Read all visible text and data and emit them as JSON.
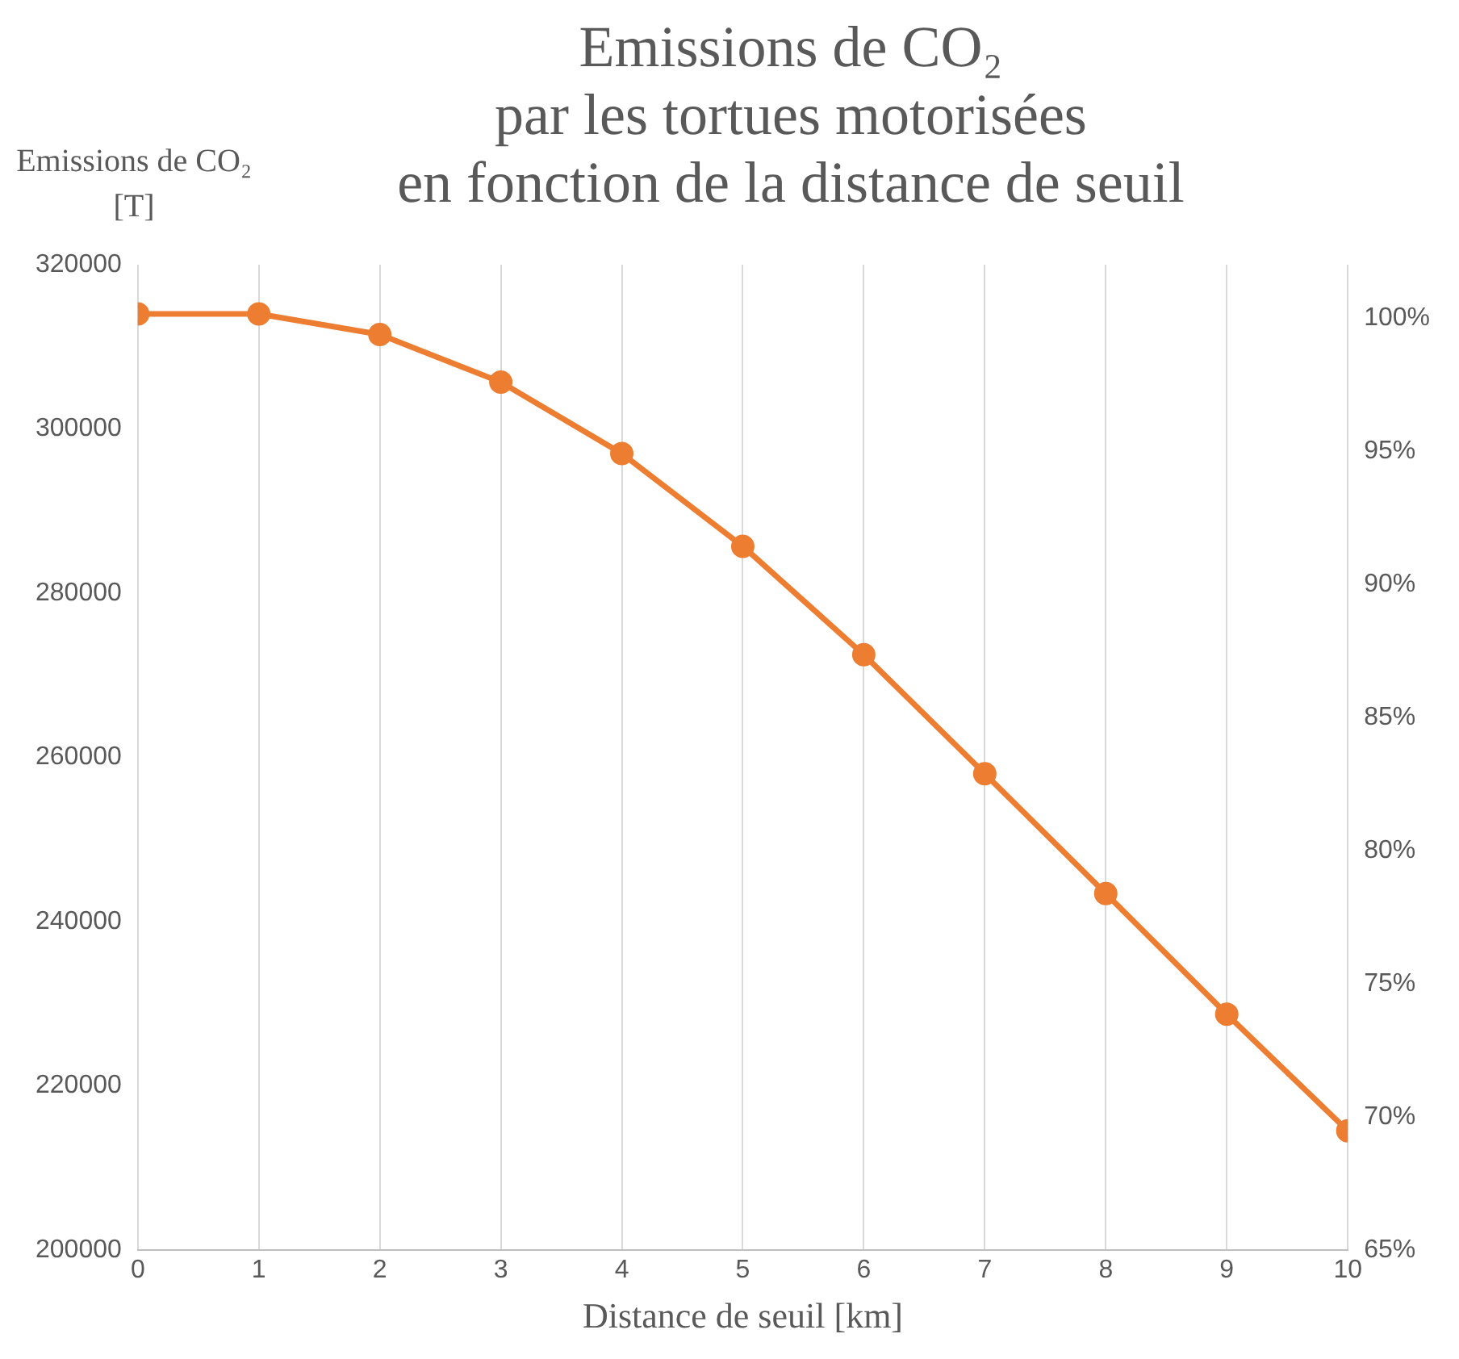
{
  "chart_data": {
    "type": "line",
    "title": "Emissions de CO₂\npar les tortues motorisées\nen fonction de la distance de seuil",
    "ylabel": "Emissions de CO₂ [T]",
    "xlabel": "Distance de seuil [km]",
    "x": [
      0,
      1,
      2,
      3,
      4,
      5,
      6,
      7,
      8,
      9,
      10
    ],
    "series": [
      {
        "color": "#ed7d31",
        "values": [
          314000,
          314000,
          311500,
          305700,
          297000,
          285700,
          272500,
          258000,
          243400,
          228700,
          214500
        ]
      }
    ],
    "xlim": [
      0,
      10
    ],
    "xticks": [
      0,
      1,
      2,
      3,
      4,
      5,
      6,
      7,
      8,
      9,
      10
    ],
    "ylim": [
      200000,
      320000
    ],
    "yticks": [
      200000,
      220000,
      240000,
      260000,
      280000,
      300000,
      320000
    ],
    "y2lim": [
      65,
      102
    ],
    "y2ticks": [
      {
        "value": 65,
        "label": "65%"
      },
      {
        "value": 70,
        "label": "70%"
      },
      {
        "value": 75,
        "label": "75%"
      },
      {
        "value": 80,
        "label": "80%"
      },
      {
        "value": 85,
        "label": "85%"
      },
      {
        "value": 90,
        "label": "90%"
      },
      {
        "value": 95,
        "label": "95%"
      },
      {
        "value": 100,
        "label": "100%"
      }
    ],
    "grid": "x",
    "marker": "circle",
    "line_style": "solid",
    "legend": false
  }
}
